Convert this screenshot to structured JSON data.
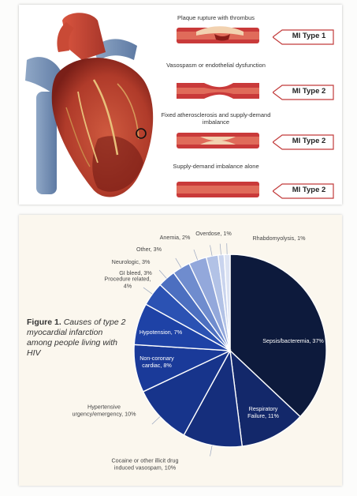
{
  "illustration": {
    "rows": [
      {
        "caption": "Plaque rupture with thrombus",
        "tag": "MI Type 1"
      },
      {
        "caption": "Vasospasm or endothelial dysfunction",
        "tag": "MI Type 2"
      },
      {
        "caption": "Fixed atherosclerosis and supply-demand imbalance",
        "tag": "MI Type 2"
      },
      {
        "caption": "Supply-demand imbalance alone",
        "tag": "MI Type 2"
      }
    ],
    "colors": {
      "artery": "#c93a3a",
      "plaque": "#f2d2b0",
      "heart": "#b8402e"
    }
  },
  "figure": {
    "label": "Figure 1.",
    "caption": "Causes of type 2 myocardial infarction among people living with HIV"
  },
  "chart_data": {
    "type": "pie",
    "slices": [
      {
        "label": "Sepsis/bacteremia,",
        "value": 37,
        "text": "37%",
        "color": "#0d1a3c"
      },
      {
        "label": "Respiratory Failure,",
        "value": 11,
        "text": "11%",
        "color": "#13286a"
      },
      {
        "label": "Cocaine or other illicit drug induced vasospam,",
        "value": 10,
        "text": "10%",
        "color": "#152e7c"
      },
      {
        "label": "Hypertensive urgency/emergency,",
        "value": 10,
        "text": "10%",
        "color": "#17348b"
      },
      {
        "label": "Non-coronary cardiac,",
        "value": 8,
        "text": "8%",
        "color": "#1a3a99"
      },
      {
        "label": "Hypotension,",
        "value": 7,
        "text": "7%",
        "color": "#1e42a6"
      },
      {
        "label": "Procedure related,",
        "value": 4,
        "text": "4%",
        "color": "#2b52b3"
      },
      {
        "label": "GI bleed,",
        "value": 3,
        "text": "3%",
        "color": "#4c6fc0"
      },
      {
        "label": "Neurologic,",
        "value": 3,
        "text": "3%",
        "color": "#6f8cce"
      },
      {
        "label": "Other,",
        "value": 3,
        "text": "3%",
        "color": "#93a8db"
      },
      {
        "label": "Anemia,",
        "value": 2,
        "text": "2%",
        "color": "#b2c2e6"
      },
      {
        "label": "Overdose,",
        "value": 1,
        "text": "1%",
        "color": "#c9d4ee"
      },
      {
        "label": "Rhabdomyolysis,",
        "value": 1,
        "text": "1%",
        "color": "#dce3f3"
      }
    ]
  }
}
